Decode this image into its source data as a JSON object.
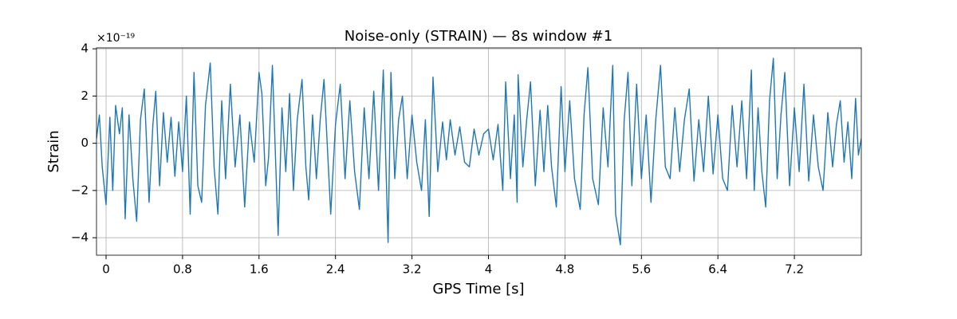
{
  "chart_data": {
    "type": "line",
    "title": "Noise-only (STRAIN) — 8s window #1",
    "xlabel": "GPS Time [s]",
    "ylabel": "Strain",
    "y_offset_label": "×10⁻¹⁹",
    "grid": true,
    "xlim": [
      -0.1,
      7.9
    ],
    "ylim": [
      -4.74,
      4.04
    ],
    "xticks": [
      0,
      0.8,
      1.6,
      2.4,
      3.2,
      4,
      4.8,
      5.6,
      6.4,
      7.2
    ],
    "yticks": [
      {
        "value": -4,
        "label": "−4"
      },
      {
        "value": -2,
        "label": "−2"
      },
      0,
      2,
      4
    ],
    "x": [
      -0.1,
      -0.07,
      -0.04,
      0,
      0.04,
      0.07,
      0.1,
      0.14,
      0.17,
      0.2,
      0.24,
      0.28,
      0.32,
      0.36,
      0.4,
      0.45,
      0.49,
      0.52,
      0.56,
      0.6,
      0.64,
      0.68,
      0.72,
      0.76,
      0.8,
      0.84,
      0.88,
      0.92,
      0.96,
      1.0,
      1.04,
      1.09,
      1.13,
      1.17,
      1.21,
      1.25,
      1.3,
      1.35,
      1.4,
      1.45,
      1.5,
      1.55,
      1.6,
      1.63,
      1.67,
      1.7,
      1.74,
      1.8,
      1.84,
      1.88,
      1.92,
      1.96,
      2.0,
      2.05,
      2.09,
      2.12,
      2.16,
      2.2,
      2.24,
      2.28,
      2.35,
      2.4,
      2.45,
      2.5,
      2.55,
      2.6,
      2.65,
      2.7,
      2.75,
      2.8,
      2.85,
      2.9,
      2.95,
      2.98,
      3.02,
      3.06,
      3.1,
      3.15,
      3.2,
      3.25,
      3.3,
      3.34,
      3.38,
      3.42,
      3.47,
      3.52,
      3.56,
      3.6,
      3.65,
      3.7,
      3.75,
      3.8,
      3.85,
      3.9,
      3.95,
      4.0,
      4.05,
      4.1,
      4.15,
      4.18,
      4.23,
      4.27,
      4.3,
      4.31,
      4.36,
      4.4,
      4.44,
      4.49,
      4.54,
      4.58,
      4.62,
      4.66,
      4.71,
      4.76,
      4.8,
      4.85,
      4.9,
      4.96,
      5.0,
      5.04,
      5.09,
      5.15,
      5.2,
      5.25,
      5.3,
      5.33,
      5.38,
      5.42,
      5.46,
      5.5,
      5.55,
      5.6,
      5.65,
      5.7,
      5.75,
      5.8,
      5.85,
      5.9,
      5.95,
      6.0,
      6.05,
      6.1,
      6.15,
      6.2,
      6.25,
      6.3,
      6.35,
      6.4,
      6.45,
      6.5,
      6.55,
      6.6,
      6.65,
      6.7,
      6.75,
      6.78,
      6.82,
      6.86,
      6.9,
      6.94,
      6.98,
      7.02,
      7.06,
      7.1,
      7.15,
      7.2,
      7.25,
      7.3,
      7.35,
      7.4,
      7.45,
      7.5,
      7.55,
      7.6,
      7.64,
      7.68,
      7.72,
      7.76,
      7.8,
      7.84,
      7.87,
      7.9
    ],
    "series": [
      {
        "color": "#1f77b4",
        "values": [
          0.2,
          1.2,
          -1.0,
          -2.6,
          1.1,
          -2.0,
          1.6,
          0.4,
          1.5,
          -3.2,
          1.2,
          -1.5,
          -3.3,
          1.0,
          2.3,
          -2.5,
          0.8,
          2.2,
          -1.8,
          1.3,
          -0.8,
          1.1,
          -1.4,
          0.9,
          -1.2,
          2.0,
          -3.0,
          3.0,
          -1.8,
          -2.5,
          1.6,
          3.4,
          -1.0,
          -3.0,
          1.8,
          -1.5,
          2.5,
          -1.0,
          1.2,
          -2.7,
          0.9,
          -0.8,
          3.0,
          2.1,
          -1.8,
          -0.6,
          3.3,
          -3.9,
          1.5,
          -1.2,
          2.1,
          -2.0,
          1.0,
          2.7,
          -1.0,
          -2.4,
          1.2,
          -1.5,
          1.0,
          2.7,
          -3.0,
          0.8,
          2.5,
          -1.5,
          1.8,
          -1.2,
          -2.8,
          1.5,
          -1.5,
          2.2,
          -2.0,
          3.1,
          -4.2,
          3.0,
          -1.5,
          1.0,
          2.0,
          -1.5,
          1.2,
          -0.8,
          -2.0,
          1.0,
          -3.1,
          2.8,
          -1.2,
          0.9,
          -0.7,
          1.0,
          -0.5,
          0.7,
          -0.8,
          -1.0,
          0.6,
          -0.5,
          0.4,
          0.6,
          -0.7,
          0.8,
          -2.0,
          2.6,
          -1.5,
          1.2,
          -2.5,
          2.9,
          -1.0,
          1.0,
          2.6,
          -1.8,
          1.4,
          -1.2,
          1.6,
          -1.0,
          -2.7,
          2.4,
          -1.2,
          1.8,
          -1.5,
          -2.8,
          1.2,
          3.2,
          -1.5,
          -2.6,
          1.5,
          -1.0,
          3.3,
          -3.0,
          -4.3,
          1.0,
          3.0,
          -1.8,
          2.5,
          -1.5,
          1.2,
          -2.5,
          1.0,
          3.3,
          -1.0,
          -1.5,
          1.5,
          -1.2,
          1.0,
          2.3,
          -1.6,
          1.0,
          -1.2,
          2.0,
          -1.3,
          1.2,
          -1.5,
          -2.0,
          1.6,
          -1.0,
          1.8,
          -1.5,
          3.1,
          -2.0,
          1.5,
          -1.2,
          -2.7,
          1.8,
          3.6,
          -1.5,
          1.2,
          3.0,
          -1.8,
          1.5,
          -1.2,
          2.5,
          -1.6,
          1.2,
          -1.0,
          -2.0,
          1.3,
          -1.0,
          0.8,
          1.8,
          -0.8,
          0.9,
          -1.5,
          1.9,
          -0.5,
          0.2
        ]
      }
    ]
  }
}
